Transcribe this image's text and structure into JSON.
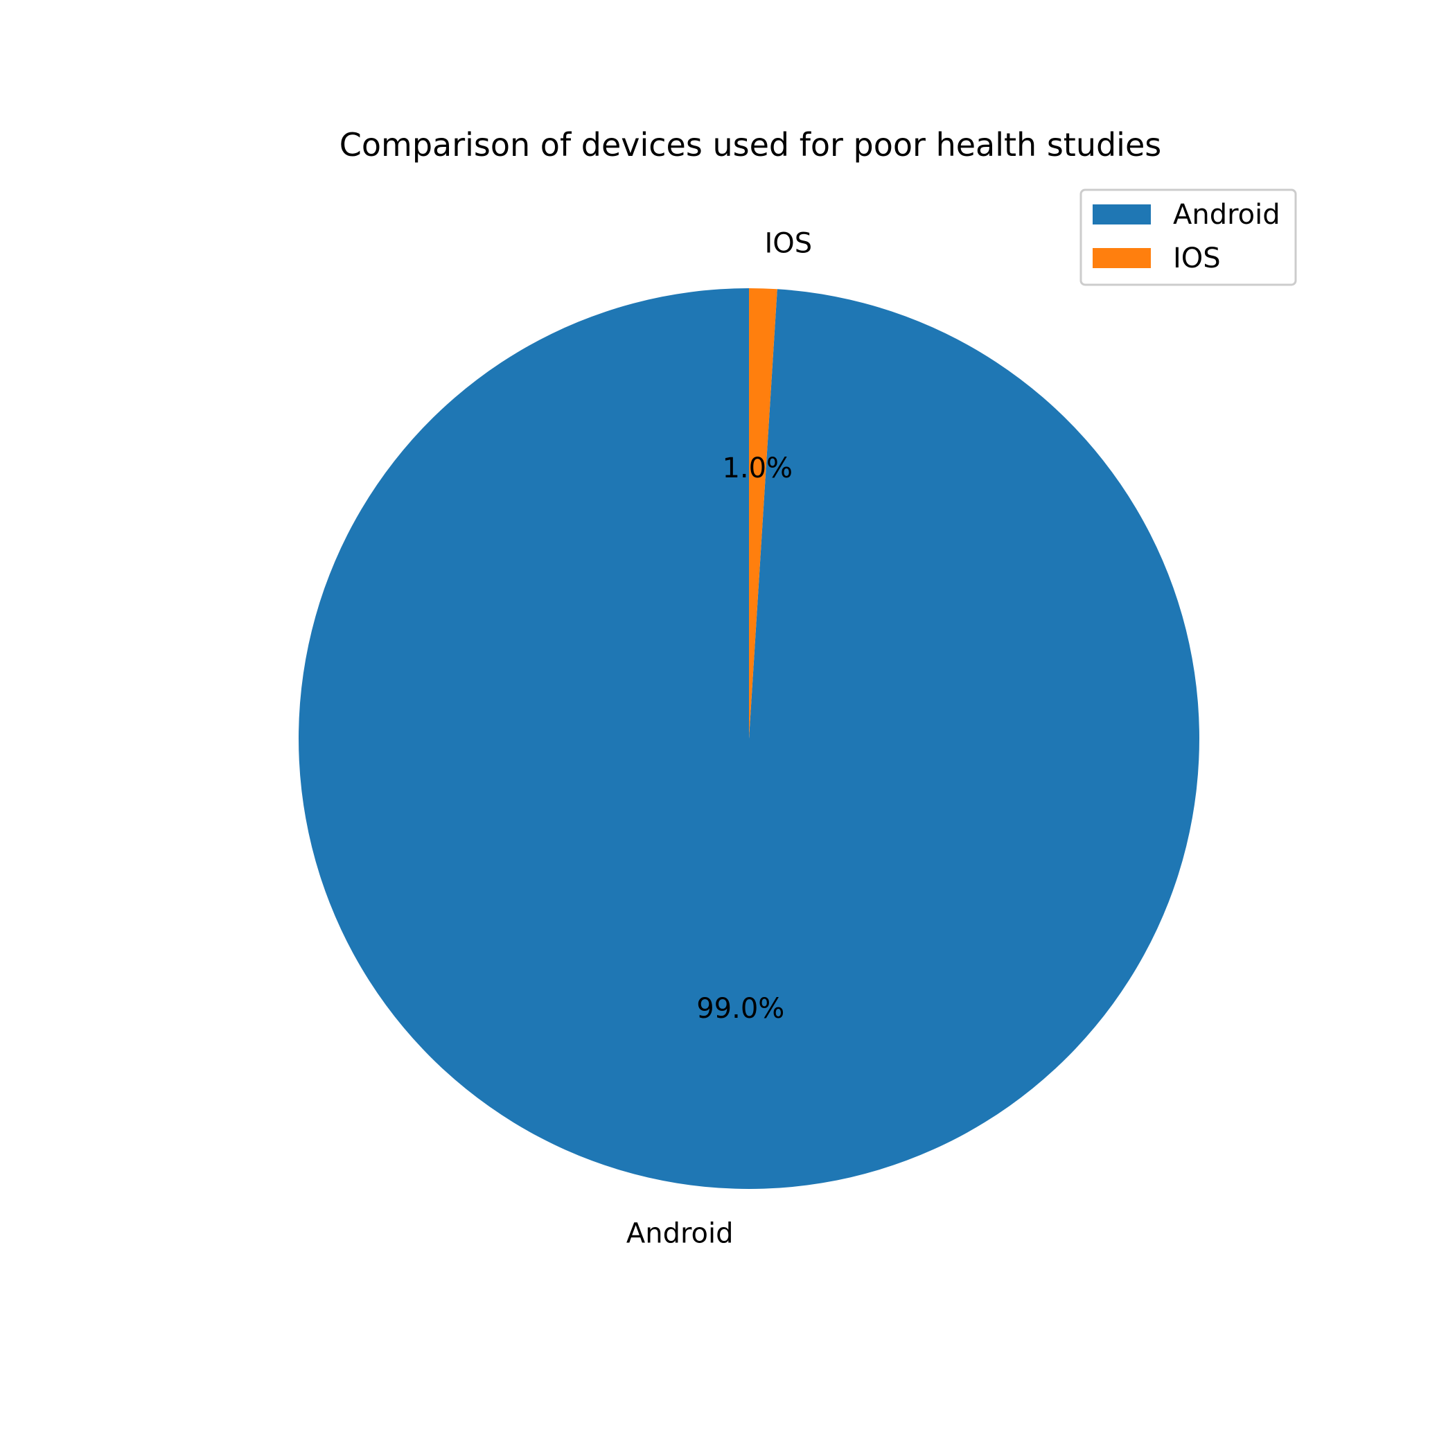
{
  "chart_data": {
    "type": "pie",
    "title": "Comparison of devices used for poor health studies",
    "slices": [
      {
        "label": "Android",
        "value": 99.0,
        "pct_label": "99.0%",
        "color": "#1f77b4"
      },
      {
        "label": "IOS",
        "value": 1.0,
        "pct_label": "1.0%",
        "color": "#ff7f0e"
      }
    ],
    "start_angle_deg": 90,
    "direction": "counterclockwise",
    "legend": {
      "placement": "top-right",
      "entries": [
        "Android",
        "IOS"
      ]
    }
  }
}
